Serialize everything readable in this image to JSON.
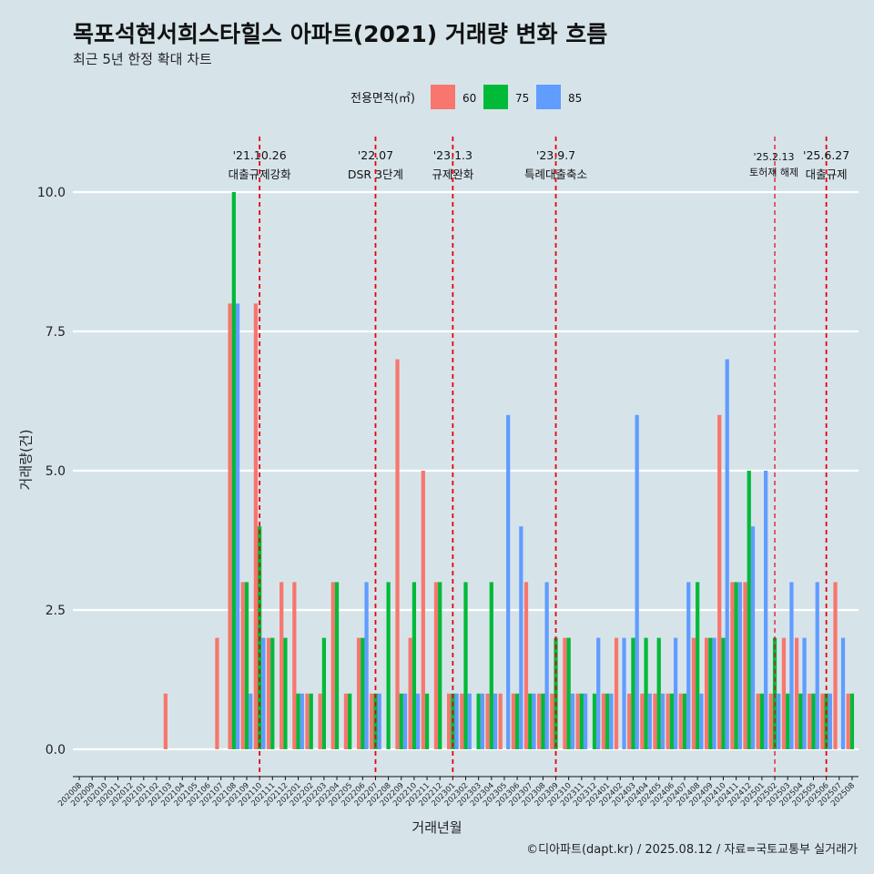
{
  "chart_data": {
    "type": "bar",
    "title": "목포석현서희스타힐스 아파트(2021) 거래량 변화 흐름",
    "subtitle": "최근 5년 한정 확대 차트",
    "xlabel": "거래년월",
    "ylabel": "거래량(건)",
    "caption": "©디아파트(dapt.kr) / 2025.08.12 / 자료=국토교통부 실거래가",
    "legend": {
      "title": "전용면적(㎡)",
      "position": "top"
    },
    "ylim": [
      0,
      10.5
    ],
    "yticks": [
      0,
      2.5,
      5,
      7.5,
      10
    ],
    "ytick_labels": [
      "0.0",
      "2.5",
      "5.0",
      "7.5",
      "10.0"
    ],
    "grid": true,
    "colors": {
      "60": "#f8766d",
      "75": "#00ba38",
      "85": "#619cff",
      "vline": "#e8000b"
    },
    "categories": [
      "202008",
      "202009",
      "202010",
      "202011",
      "202012",
      "202101",
      "202102",
      "202103",
      "202104",
      "202105",
      "202106",
      "202107",
      "202108",
      "202109",
      "202110",
      "202111",
      "202112",
      "202201",
      "202202",
      "202203",
      "202204",
      "202205",
      "202206",
      "202207",
      "202208",
      "202209",
      "202210",
      "202211",
      "202212",
      "202301",
      "202302",
      "202303",
      "202304",
      "202305",
      "202306",
      "202307",
      "202308",
      "202309",
      "202310",
      "202311",
      "202312",
      "202401",
      "202402",
      "202403",
      "202404",
      "202405",
      "202406",
      "202407",
      "202408",
      "202409",
      "202410",
      "202411",
      "202412",
      "202501",
      "202502",
      "202503",
      "202504",
      "202505",
      "202506",
      "202507",
      "202508"
    ],
    "series": [
      {
        "name": "60",
        "values": [
          0,
          0,
          0,
          0,
          0,
          0,
          0,
          1,
          0,
          0,
          0,
          2,
          8,
          3,
          8,
          2,
          3,
          3,
          1,
          1,
          3,
          1,
          2,
          1,
          0,
          7,
          2,
          5,
          3,
          1,
          1,
          0,
          1,
          1,
          1,
          3,
          1,
          1,
          2,
          1,
          0,
          1,
          2,
          1,
          1,
          1,
          1,
          1,
          2,
          2,
          6,
          3,
          3,
          1,
          1,
          2,
          2,
          1,
          1,
          3,
          1
        ],
        "labels": [
          "",
          "",
          "",
          "",
          "",
          "",
          "",
          "1",
          "",
          "",
          "",
          "2",
          "8",
          "3",
          "8",
          "2",
          "3",
          "3",
          "1",
          "1",
          "3",
          "1",
          "2",
          "1",
          "",
          "7",
          "2",
          "5",
          "3",
          "1",
          "1",
          "",
          "1",
          "1",
          "1",
          "3",
          "1",
          "1",
          "2",
          "1",
          "",
          "1",
          "2",
          "1",
          "1",
          "1",
          "1",
          "1",
          "2",
          "2",
          "6",
          "3",
          "3",
          "1",
          "1",
          "2",
          "2",
          "1",
          "1",
          "3",
          "1"
        ]
      },
      {
        "name": "75",
        "values": [
          0,
          0,
          0,
          0,
          0,
          0,
          0,
          0,
          0,
          0,
          0,
          0,
          10,
          3,
          4,
          2,
          2,
          1,
          1,
          2,
          3,
          1,
          2,
          1,
          3,
          1,
          3,
          1,
          3,
          1,
          3,
          1,
          3,
          0,
          1,
          1,
          1,
          2,
          2,
          1,
          1,
          1,
          0,
          2,
          2,
          2,
          1,
          1,
          3,
          2,
          2,
          3,
          5,
          1,
          2,
          1,
          1,
          1,
          1,
          0,
          1
        ]
      },
      {
        "name": "85",
        "values": [
          0,
          0,
          0,
          0,
          0,
          0,
          0,
          0,
          0,
          0,
          0,
          0,
          8,
          1,
          2,
          0,
          0,
          1,
          0,
          0,
          0,
          0,
          3,
          1,
          0,
          1,
          1,
          0,
          0,
          1,
          1,
          1,
          1,
          6,
          4,
          1,
          3,
          0,
          1,
          1,
          2,
          1,
          2,
          6,
          1,
          1,
          2,
          3,
          1,
          2,
          7,
          3,
          4,
          5,
          1,
          3,
          2,
          3,
          1,
          2,
          0
        ]
      }
    ],
    "events": [
      {
        "date": "'21.10.26",
        "label": "대출규제강화",
        "category": "202110"
      },
      {
        "date": "'22.07",
        "label": "DSR 3단계",
        "category": "202207"
      },
      {
        "date": "'23.1.3",
        "label": "규제완화",
        "category": "202301"
      },
      {
        "date": "'23.9.7",
        "label": "특례대출축소",
        "category": "202309"
      },
      {
        "date": "'25.2.13",
        "label": "토허제 해제",
        "category": "202502"
      },
      {
        "date": "'25.6.27",
        "label": "대출규제",
        "category": "202506"
      }
    ]
  }
}
